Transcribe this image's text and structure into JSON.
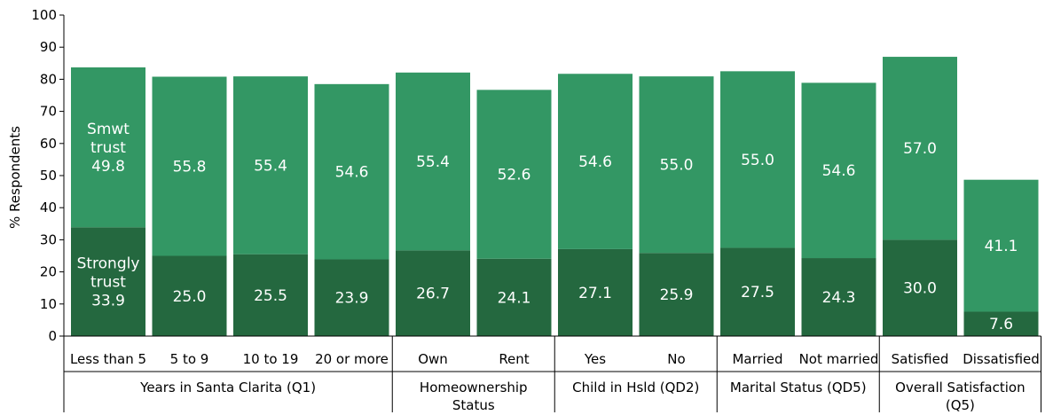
{
  "chart_data": {
    "type": "bar",
    "stacked": true,
    "ylabel": "% Respondents",
    "ylim": [
      0,
      100
    ],
    "yticks": [
      0,
      10,
      20,
      30,
      40,
      50,
      60,
      70,
      80,
      90,
      100
    ],
    "grid": false,
    "categories": [
      "Less than 5",
      "5 to 9",
      "10 to 19",
      "20 or more",
      "Own",
      "Rent",
      "Yes",
      "No",
      "Married",
      "Not married",
      "Satisfied",
      "Dissatisfied"
    ],
    "groups": [
      {
        "label": [
          "Years in Santa Clarita (Q1)"
        ],
        "start": 0,
        "end": 3
      },
      {
        "label": [
          "Homeownership",
          "Status"
        ],
        "start": 4,
        "end": 5
      },
      {
        "label": [
          "Child in Hsld (QD2)"
        ],
        "start": 6,
        "end": 7
      },
      {
        "label": [
          "Marital Status (QD5)"
        ],
        "start": 8,
        "end": 9
      },
      {
        "label": [
          "Overall Satisfaction",
          "(Q5)"
        ],
        "start": 10,
        "end": 11
      }
    ],
    "series": [
      {
        "name": "Strongly trust",
        "color": "#24683f",
        "values": [
          33.9,
          25.0,
          25.5,
          23.9,
          26.7,
          24.1,
          27.1,
          25.9,
          27.5,
          24.3,
          30.0,
          7.6
        ],
        "labels": [
          "33.9",
          "25.0",
          "25.5",
          "23.9",
          "26.7",
          "24.1",
          "27.1",
          "25.9",
          "27.5",
          "24.3",
          "30.0",
          "7.6"
        ]
      },
      {
        "name": "Smwt trust",
        "color": "#339764",
        "values": [
          49.8,
          55.8,
          55.4,
          54.6,
          55.4,
          52.6,
          54.6,
          55.0,
          55.0,
          54.6,
          57.0,
          41.1
        ],
        "labels": [
          "49.8",
          "55.8",
          "55.4",
          "54.6",
          "55.4",
          "52.6",
          "54.6",
          "55.0",
          "55.0",
          "54.6",
          "57.0",
          "41.1"
        ]
      }
    ],
    "inline_series_labels": [
      {
        "series": 0,
        "lines": [
          "Strongly",
          "trust"
        ]
      },
      {
        "series": 1,
        "lines": [
          "Smwt",
          "trust"
        ]
      }
    ]
  }
}
